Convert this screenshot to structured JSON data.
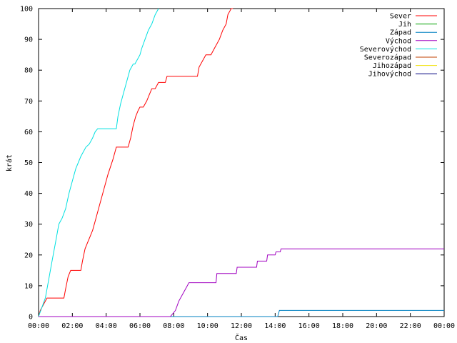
{
  "chart_data": {
    "type": "line",
    "xlabel": "Čas",
    "ylabel": "krát",
    "xlim": [
      0,
      24
    ],
    "ylim": [
      0,
      100
    ],
    "grid": false,
    "legend_position": "top-right",
    "x_ticks": [
      {
        "value": 0,
        "label": "00:00"
      },
      {
        "value": 2,
        "label": "02:00"
      },
      {
        "value": 4,
        "label": "04:00"
      },
      {
        "value": 6,
        "label": "06:00"
      },
      {
        "value": 8,
        "label": "08:00"
      },
      {
        "value": 10,
        "label": "10:00"
      },
      {
        "value": 12,
        "label": "12:00"
      },
      {
        "value": 14,
        "label": "14:00"
      },
      {
        "value": 16,
        "label": "16:00"
      },
      {
        "value": 18,
        "label": "18:00"
      },
      {
        "value": 20,
        "label": "20:00"
      },
      {
        "value": 22,
        "label": "22:00"
      },
      {
        "value": 24,
        "label": "00:00"
      }
    ],
    "y_ticks": [
      {
        "value": 0,
        "label": "0"
      },
      {
        "value": 10,
        "label": "10"
      },
      {
        "value": 20,
        "label": "20"
      },
      {
        "value": 30,
        "label": "30"
      },
      {
        "value": 40,
        "label": "40"
      },
      {
        "value": 50,
        "label": "50"
      },
      {
        "value": 60,
        "label": "60"
      },
      {
        "value": 70,
        "label": "70"
      },
      {
        "value": 80,
        "label": "80"
      },
      {
        "value": 90,
        "label": "90"
      },
      {
        "value": 100,
        "label": "100"
      }
    ],
    "series": [
      {
        "name": "Sever",
        "color": "#ff0000",
        "x": [
          0,
          0.1,
          0.3,
          0.5,
          1.5,
          1.6,
          1.75,
          1.9,
          2.5,
          2.6,
          2.75,
          2.9,
          3.05,
          3.2,
          3.35,
          3.5,
          3.8,
          4.1,
          4.4,
          4.6,
          5.3,
          5.45,
          5.6,
          5.75,
          5.9,
          6.0,
          6.2,
          6.4,
          6.55,
          6.7,
          6.9,
          7.1,
          7.5,
          7.6,
          9.4,
          9.5,
          9.7,
          9.9,
          10.2,
          10.4,
          10.7,
          10.9,
          11.1,
          11.2,
          11.3,
          11.4,
          11.5
        ],
        "y": [
          0,
          2,
          4,
          6,
          6,
          9,
          13,
          15,
          15,
          18,
          22,
          24,
          26,
          28,
          31,
          34,
          40,
          46,
          51,
          55,
          55,
          58,
          62,
          65,
          67,
          68,
          68,
          70,
          72,
          74,
          74,
          76,
          76,
          78,
          78,
          81,
          83,
          85,
          85,
          87,
          90,
          93,
          95,
          98,
          99,
          100,
          100
        ]
      },
      {
        "name": "Jih",
        "color": "#00a000",
        "x": [],
        "y": []
      },
      {
        "name": "Západ",
        "color": "#0080c0",
        "x": [
          0,
          14.15,
          14.25,
          24
        ],
        "y": [
          0,
          0,
          2,
          2
        ]
      },
      {
        "name": "Východ",
        "color": "#a000c0",
        "x": [
          0,
          7.8,
          7.95,
          8.1,
          8.3,
          8.5,
          8.7,
          8.9,
          9.05,
          10.5,
          10.55,
          11.7,
          11.75,
          12.9,
          12.95,
          13.5,
          13.55,
          14.0,
          14.05,
          14.3,
          14.35,
          24
        ],
        "y": [
          0,
          0,
          1,
          2,
          5,
          7,
          9,
          11,
          11,
          11,
          14,
          14,
          16,
          16,
          18,
          18,
          20,
          20,
          21,
          21,
          22,
          22
        ]
      },
      {
        "name": "Severovýchod",
        "color": "#00e0e0",
        "x": [
          0,
          0.2,
          0.4,
          0.6,
          0.8,
          1.0,
          1.2,
          1.4,
          1.6,
          1.8,
          2.0,
          2.2,
          2.5,
          2.8,
          3.0,
          3.2,
          3.35,
          3.5,
          3.6,
          4.6,
          4.7,
          4.85,
          5.0,
          5.2,
          5.4,
          5.6,
          5.7,
          6.0,
          6.1,
          6.3,
          6.5,
          6.7,
          6.9,
          7.0,
          7.1
        ],
        "y": [
          0,
          3,
          6,
          12,
          18,
          24,
          30,
          32,
          35,
          40,
          44,
          48,
          52,
          55,
          56,
          58,
          60,
          61,
          61,
          61,
          65,
          69,
          72,
          76,
          80,
          82,
          82,
          85,
          87,
          90,
          93,
          95,
          98,
          99,
          100
        ]
      },
      {
        "name": "Severozápad",
        "color": "#c04000",
        "x": [],
        "y": []
      },
      {
        "name": "Jihozápad",
        "color": "#f0e000",
        "x": [],
        "y": []
      },
      {
        "name": "Jihovýchod",
        "color": "#000080",
        "x": [],
        "y": []
      }
    ]
  }
}
